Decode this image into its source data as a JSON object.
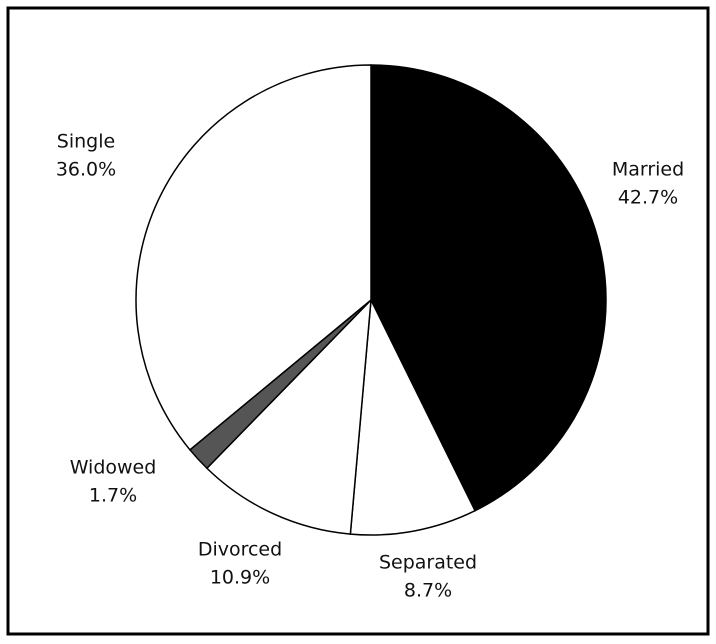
{
  "chart_data": {
    "type": "pie",
    "categories": [
      "Married",
      "Separated",
      "Divorced",
      "Widowed",
      "Single"
    ],
    "values": [
      42.7,
      8.7,
      10.9,
      1.7,
      36.0
    ],
    "value_labels": [
      "42.7%",
      "8.7%",
      "10.9%",
      "1.7%",
      "36.0%"
    ],
    "colors": [
      "#000000",
      "#ffffff",
      "#ffffff",
      "#555555",
      "#ffffff"
    ]
  }
}
